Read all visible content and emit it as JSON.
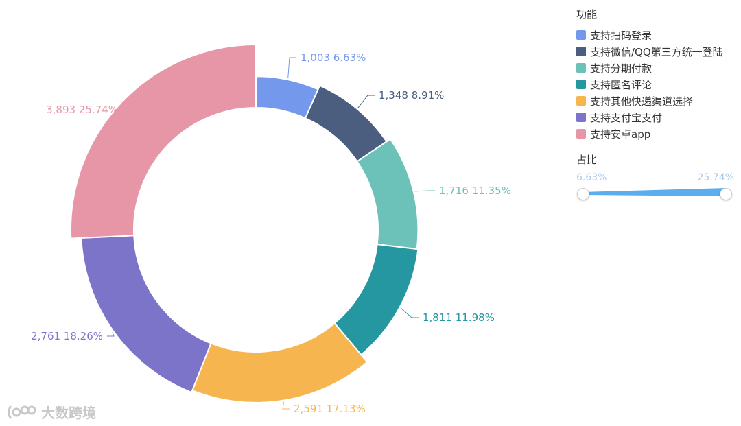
{
  "chart_data": {
    "type": "pie",
    "variant": "donut",
    "slices": [
      {
        "name": "支持扫码登录",
        "value": 1003,
        "percent": "6.63%",
        "color": "#7498ec"
      },
      {
        "name": "支持微信/QQ第三方统一登陆",
        "value": 1348,
        "percent": "8.91%",
        "color": "#4b5e80"
      },
      {
        "name": "支持分期付款",
        "value": 1716,
        "percent": "11.35%",
        "color": "#6cc2b8"
      },
      {
        "name": "支持匿名评论",
        "value": 1811,
        "percent": "11.98%",
        "color": "#2597a0"
      },
      {
        "name": "支持其他快递渠道选择",
        "value": 2591,
        "percent": "17.13%",
        "color": "#f7b550"
      },
      {
        "name": "支持支付宝支付",
        "value": 2761,
        "percent": "18.26%",
        "color": "#7c74c8"
      },
      {
        "name": "支持安卓app",
        "value": 3893,
        "percent": "25.74%",
        "color": "#e796a8"
      }
    ],
    "labels": [
      "1,003 6.63%",
      "1,348 8.91%",
      "1,716 11.35%",
      "1,811 11.98%",
      "2,591 17.13%",
      "2,761 18.26%",
      "3,893 25.74%"
    ],
    "legend_position": "top-right"
  },
  "legend": {
    "title": "功能",
    "items": [
      {
        "label": "支持扫码登录",
        "color": "#7498ec"
      },
      {
        "label": "支持微信/QQ第三方统一登陆",
        "color": "#4b5e80"
      },
      {
        "label": "支持分期付款",
        "color": "#6cc2b8"
      },
      {
        "label": "支持匿名评论",
        "color": "#2597a0"
      },
      {
        "label": "支持其他快递渠道选择",
        "color": "#f7b550"
      },
      {
        "label": "支持支付宝支付",
        "color": "#7c74c8"
      },
      {
        "label": "支持安卓app",
        "color": "#e796a8"
      }
    ]
  },
  "visual_map": {
    "title": "占比",
    "min_label": "6.63%",
    "max_label": "25.74%",
    "color": "#5aaef0"
  },
  "watermark": {
    "text": "大数跨境"
  }
}
